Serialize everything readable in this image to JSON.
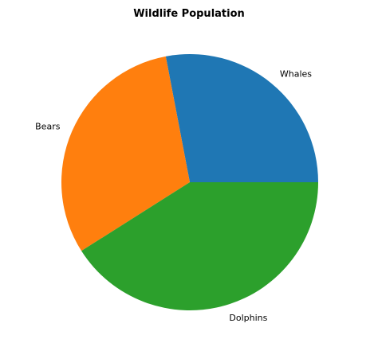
{
  "chart_data": {
    "type": "pie",
    "title": "Wildlife Population",
    "categories": [
      "Whales",
      "Bears",
      "Dolphins"
    ],
    "values": [
      28,
      31,
      41
    ],
    "colors": [
      "#1f77b4",
      "#ff7f0e",
      "#2ca02c"
    ],
    "start_angle_deg": 0,
    "direction": "counterclockwise",
    "legend": "none"
  }
}
